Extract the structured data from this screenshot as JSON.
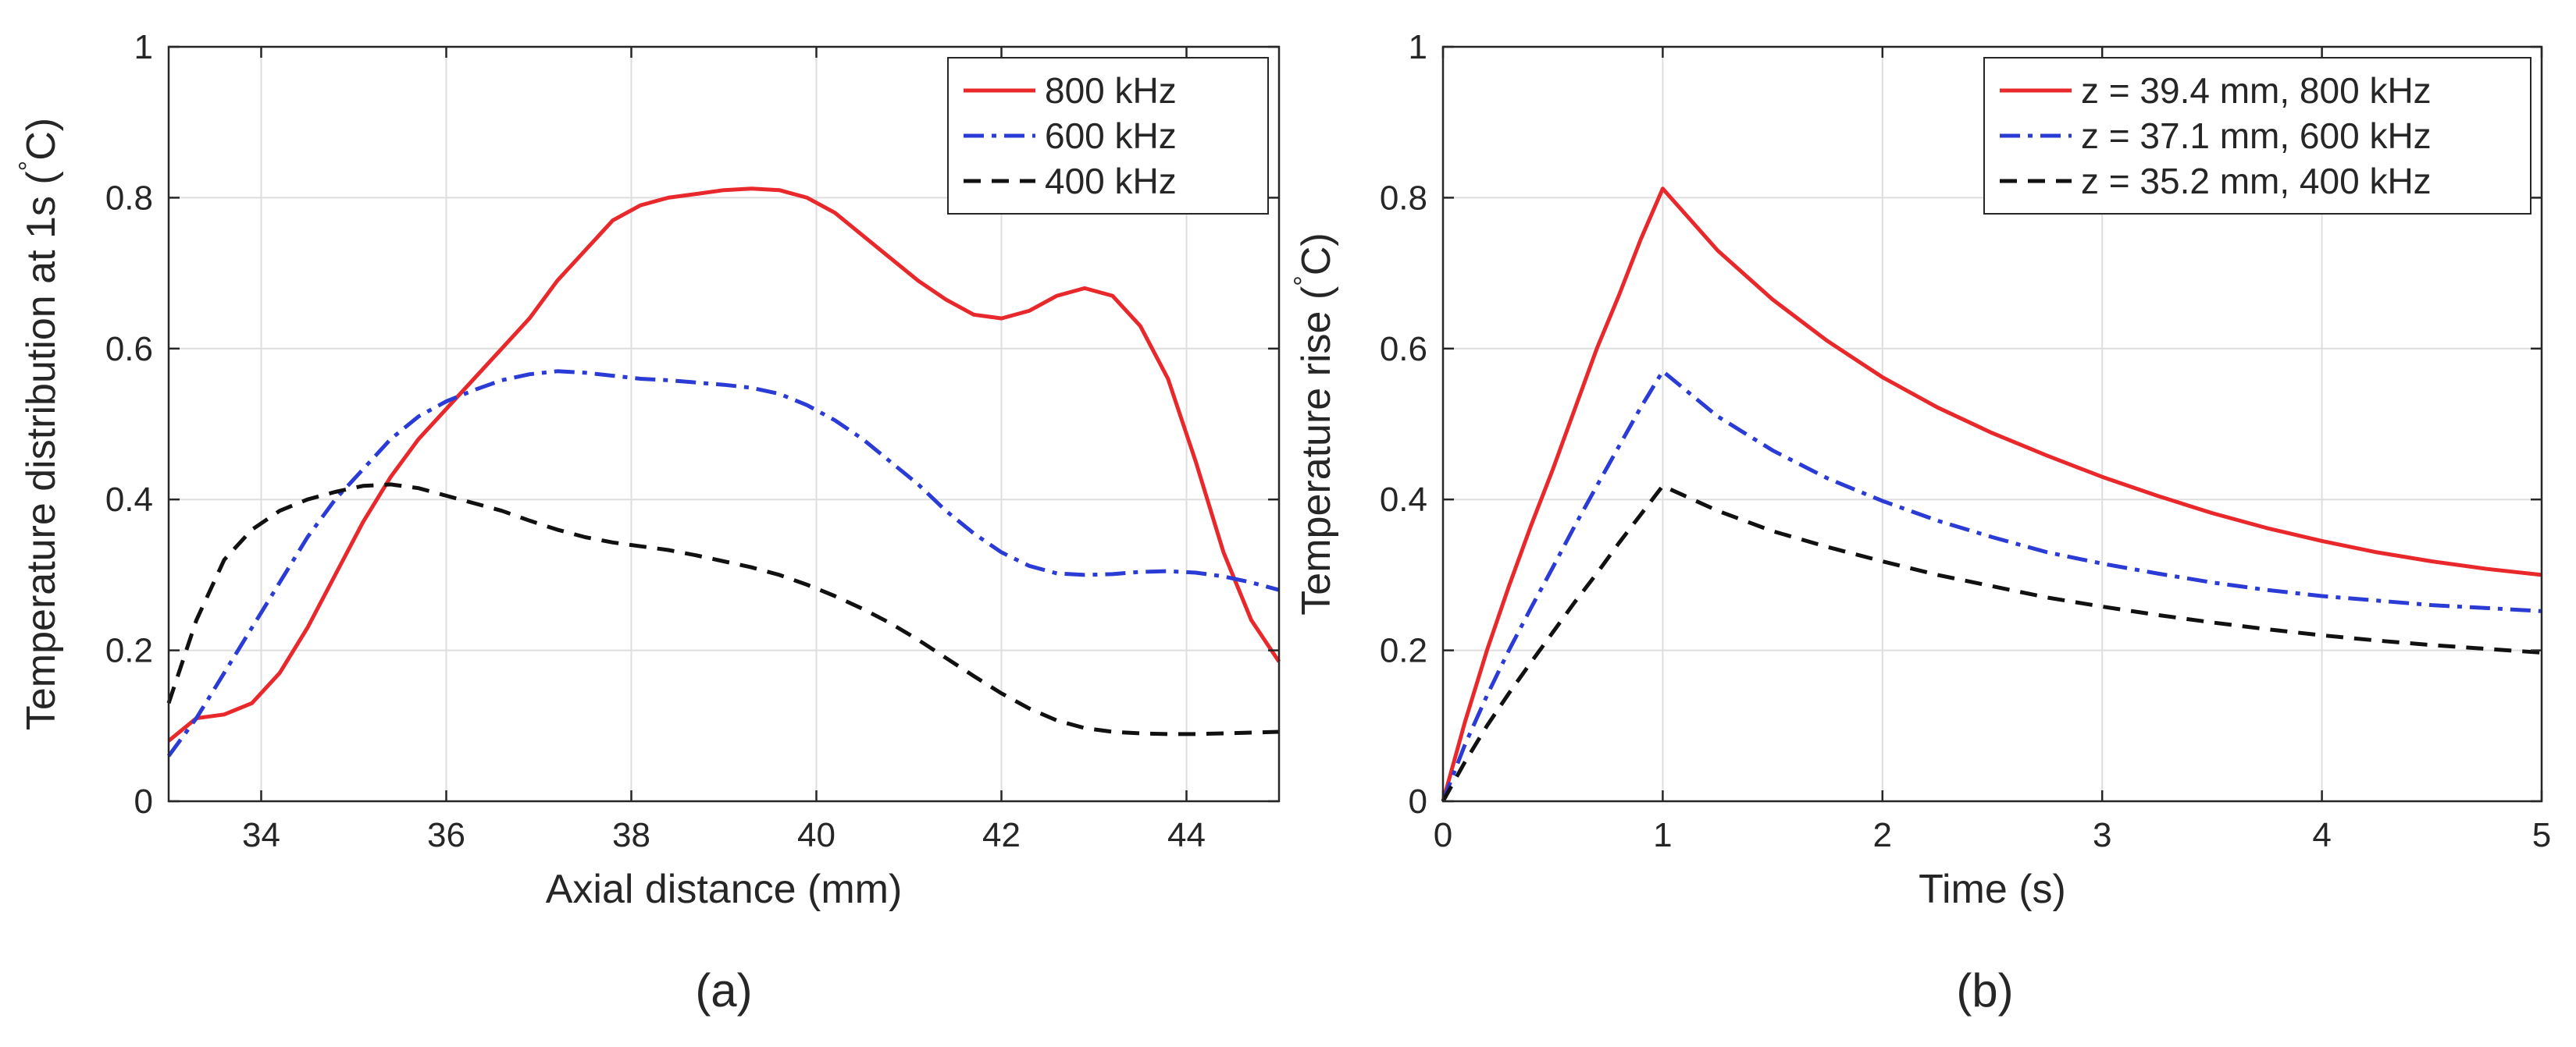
{
  "figure": {
    "panel_captions": [
      "(a)",
      "(b)"
    ]
  },
  "chart_data": [
    {
      "type": "line",
      "xlabel": "Axial distance (mm)",
      "ylabel": "Temperature distribution at 1s (°C)",
      "ylabel_parts": {
        "text": "Temperature distribution at 1s (",
        "degree": "°",
        "unit_end": "C)"
      },
      "xlim": [
        33,
        45
      ],
      "ylim": [
        0,
        1
      ],
      "xticks": [
        34,
        36,
        38,
        40,
        42,
        44
      ],
      "yticks": [
        0,
        0.2,
        0.4,
        0.6,
        0.8,
        1
      ],
      "ytick_labels": [
        "0",
        "0.2",
        "0.4",
        "0.6",
        "0.8",
        "1"
      ],
      "grid": true,
      "legend_position": "top-right",
      "series": [
        {
          "name": "800 kHz",
          "color": "#e8282b",
          "style": "solid",
          "x": [
            33.0,
            33.3,
            33.6,
            33.9,
            34.2,
            34.5,
            34.8,
            35.1,
            35.4,
            35.7,
            36.0,
            36.3,
            36.6,
            36.9,
            37.2,
            37.5,
            37.8,
            38.1,
            38.4,
            38.7,
            39.0,
            39.3,
            39.6,
            39.9,
            40.2,
            40.5,
            40.8,
            41.1,
            41.4,
            41.7,
            42.0,
            42.3,
            42.6,
            42.9,
            43.2,
            43.5,
            43.8,
            44.1,
            44.4,
            44.7,
            45.0
          ],
          "y": [
            0.08,
            0.11,
            0.115,
            0.13,
            0.17,
            0.23,
            0.3,
            0.37,
            0.43,
            0.48,
            0.52,
            0.56,
            0.6,
            0.64,
            0.69,
            0.73,
            0.77,
            0.79,
            0.8,
            0.805,
            0.81,
            0.812,
            0.81,
            0.8,
            0.78,
            0.75,
            0.72,
            0.69,
            0.665,
            0.645,
            0.64,
            0.65,
            0.67,
            0.68,
            0.67,
            0.63,
            0.56,
            0.45,
            0.33,
            0.24,
            0.185
          ]
        },
        {
          "name": "600 kHz",
          "color": "#2a3bd6",
          "style": "dashdot",
          "x": [
            33.0,
            33.3,
            33.6,
            33.9,
            34.2,
            34.5,
            34.8,
            35.1,
            35.4,
            35.7,
            36.0,
            36.3,
            36.6,
            36.9,
            37.2,
            37.5,
            37.8,
            38.1,
            38.4,
            38.7,
            39.0,
            39.3,
            39.6,
            39.9,
            40.2,
            40.5,
            40.8,
            41.1,
            41.4,
            41.7,
            42.0,
            42.3,
            42.6,
            42.9,
            43.2,
            43.5,
            43.8,
            44.1,
            44.4,
            44.7,
            45.0
          ],
          "y": [
            0.06,
            0.11,
            0.17,
            0.23,
            0.29,
            0.35,
            0.4,
            0.44,
            0.48,
            0.51,
            0.53,
            0.545,
            0.558,
            0.566,
            0.57,
            0.568,
            0.564,
            0.56,
            0.558,
            0.555,
            0.552,
            0.548,
            0.54,
            0.525,
            0.505,
            0.48,
            0.45,
            0.42,
            0.385,
            0.355,
            0.33,
            0.312,
            0.302,
            0.3,
            0.301,
            0.304,
            0.305,
            0.303,
            0.298,
            0.29,
            0.28
          ]
        },
        {
          "name": "400 kHz",
          "color": "#111111",
          "style": "dashed",
          "x": [
            33.0,
            33.3,
            33.6,
            33.9,
            34.2,
            34.5,
            34.8,
            35.1,
            35.4,
            35.7,
            36.0,
            36.3,
            36.6,
            36.9,
            37.2,
            37.5,
            37.8,
            38.1,
            38.4,
            38.7,
            39.0,
            39.3,
            39.6,
            39.9,
            40.2,
            40.5,
            40.8,
            41.1,
            41.4,
            41.7,
            42.0,
            42.3,
            42.6,
            42.9,
            43.2,
            43.5,
            43.8,
            44.1,
            44.4,
            44.7,
            45.0
          ],
          "y": [
            0.13,
            0.24,
            0.32,
            0.36,
            0.385,
            0.4,
            0.41,
            0.418,
            0.42,
            0.415,
            0.405,
            0.395,
            0.385,
            0.372,
            0.36,
            0.35,
            0.343,
            0.338,
            0.333,
            0.326,
            0.318,
            0.31,
            0.3,
            0.287,
            0.272,
            0.255,
            0.236,
            0.214,
            0.19,
            0.166,
            0.143,
            0.123,
            0.107,
            0.097,
            0.092,
            0.09,
            0.089,
            0.089,
            0.09,
            0.091,
            0.092
          ]
        }
      ]
    },
    {
      "type": "line",
      "xlabel": "Time (s)",
      "ylabel": "Temperature rise (°C)",
      "ylabel_parts": {
        "text": "Temperature rise (",
        "degree": "°",
        "unit_end": "C)"
      },
      "xlim": [
        0,
        5
      ],
      "ylim": [
        0,
        1
      ],
      "xticks": [
        0,
        1,
        2,
        3,
        4,
        5
      ],
      "yticks": [
        0,
        0.2,
        0.4,
        0.6,
        0.8,
        1
      ],
      "ytick_labels": [
        "0",
        "0.2",
        "0.4",
        "0.6",
        "0.8",
        "1"
      ],
      "grid": true,
      "legend_position": "top-right",
      "series": [
        {
          "name": "z = 39.4 mm, 800 kHz",
          "color": "#e8282b",
          "style": "solid",
          "x": [
            0,
            0.1,
            0.2,
            0.3,
            0.4,
            0.5,
            0.6,
            0.7,
            0.8,
            0.9,
            1.0,
            1.25,
            1.5,
            1.75,
            2.0,
            2.25,
            2.5,
            2.75,
            3.0,
            3.25,
            3.5,
            3.75,
            4.0,
            4.25,
            4.5,
            4.75,
            5.0
          ],
          "y": [
            0,
            0.105,
            0.2,
            0.285,
            0.365,
            0.44,
            0.52,
            0.6,
            0.67,
            0.745,
            0.812,
            0.73,
            0.665,
            0.61,
            0.562,
            0.522,
            0.488,
            0.458,
            0.43,
            0.405,
            0.382,
            0.362,
            0.345,
            0.33,
            0.318,
            0.308,
            0.3
          ]
        },
        {
          "name": "z = 37.1 mm, 600 kHz",
          "color": "#2a3bd6",
          "style": "dashdot",
          "x": [
            0,
            0.1,
            0.2,
            0.3,
            0.4,
            0.5,
            0.6,
            0.7,
            0.8,
            0.9,
            1.0,
            1.25,
            1.5,
            1.75,
            2.0,
            2.25,
            2.5,
            2.75,
            3.0,
            3.25,
            3.5,
            3.75,
            4.0,
            4.25,
            4.5,
            4.75,
            5.0
          ],
          "y": [
            0,
            0.075,
            0.14,
            0.2,
            0.256,
            0.31,
            0.365,
            0.418,
            0.47,
            0.522,
            0.57,
            0.51,
            0.465,
            0.428,
            0.398,
            0.372,
            0.35,
            0.33,
            0.315,
            0.302,
            0.29,
            0.28,
            0.272,
            0.266,
            0.26,
            0.256,
            0.252
          ]
        },
        {
          "name": "z = 35.2 mm, 400 kHz",
          "color": "#111111",
          "style": "dashed",
          "x": [
            0,
            0.1,
            0.2,
            0.3,
            0.4,
            0.5,
            0.6,
            0.7,
            0.8,
            0.9,
            1.0,
            1.25,
            1.5,
            1.75,
            2.0,
            2.25,
            2.5,
            2.75,
            3.0,
            3.25,
            3.5,
            3.75,
            4.0,
            4.25,
            4.5,
            4.75,
            5.0
          ],
          "y": [
            0,
            0.052,
            0.1,
            0.143,
            0.184,
            0.224,
            0.264,
            0.302,
            0.342,
            0.38,
            0.418,
            0.385,
            0.358,
            0.337,
            0.318,
            0.3,
            0.285,
            0.27,
            0.258,
            0.247,
            0.237,
            0.228,
            0.22,
            0.213,
            0.207,
            0.202,
            0.197
          ]
        }
      ]
    }
  ]
}
